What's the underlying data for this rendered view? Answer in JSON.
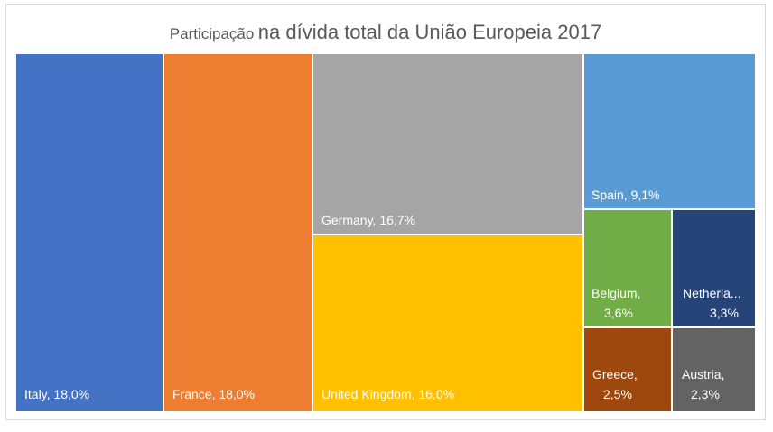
{
  "chart_data": {
    "type": "treemap",
    "title_part1": "Participação",
    "title_part2": "na dívida total da União Europeia 2017",
    "data": [
      {
        "name": "Italy",
        "label": "Italy, 18,0%",
        "value": 18.0,
        "color": "#4472C4",
        "label_lines": [
          "Italy, 18,0%"
        ]
      },
      {
        "name": "France",
        "label": "France, 18,0%",
        "value": 18.0,
        "color": "#ED7D31",
        "label_lines": [
          "France, 18,0%"
        ]
      },
      {
        "name": "Germany",
        "label": "Germany, 16,7%",
        "value": 16.7,
        "color": "#A5A5A5",
        "label_lines": [
          "Germany, 16,7%"
        ]
      },
      {
        "name": "United Kingdom",
        "label": "United Kingdom, 16,0%",
        "value": 16.0,
        "color": "#FFC000",
        "label_lines": [
          "United Kingdom, 16,0%"
        ]
      },
      {
        "name": "Spain",
        "label": "Spain, 9,1%",
        "value": 9.1,
        "color": "#5B9BD5",
        "label_lines": [
          "Spain, 9,1%"
        ]
      },
      {
        "name": "Belgium",
        "label": "Belgium, 3,6%",
        "value": 3.6,
        "color": "#70AD47",
        "label_lines": [
          "Belgium,",
          "3,6%"
        ]
      },
      {
        "name": "Netherlands",
        "label": "Netherla... 3,3%",
        "value": 3.3,
        "color": "#264478",
        "label_lines": [
          "Netherla...",
          "3,3%"
        ]
      },
      {
        "name": "Greece",
        "label": "Greece, 2,5%",
        "value": 2.5,
        "color": "#9E480E",
        "label_lines": [
          "Greece,",
          "2,5%"
        ]
      },
      {
        "name": "Austria",
        "label": "Austria, 2,3%",
        "value": 2.3,
        "color": "#636363",
        "label_lines": [
          "Austria,",
          "2,3%"
        ]
      }
    ]
  }
}
